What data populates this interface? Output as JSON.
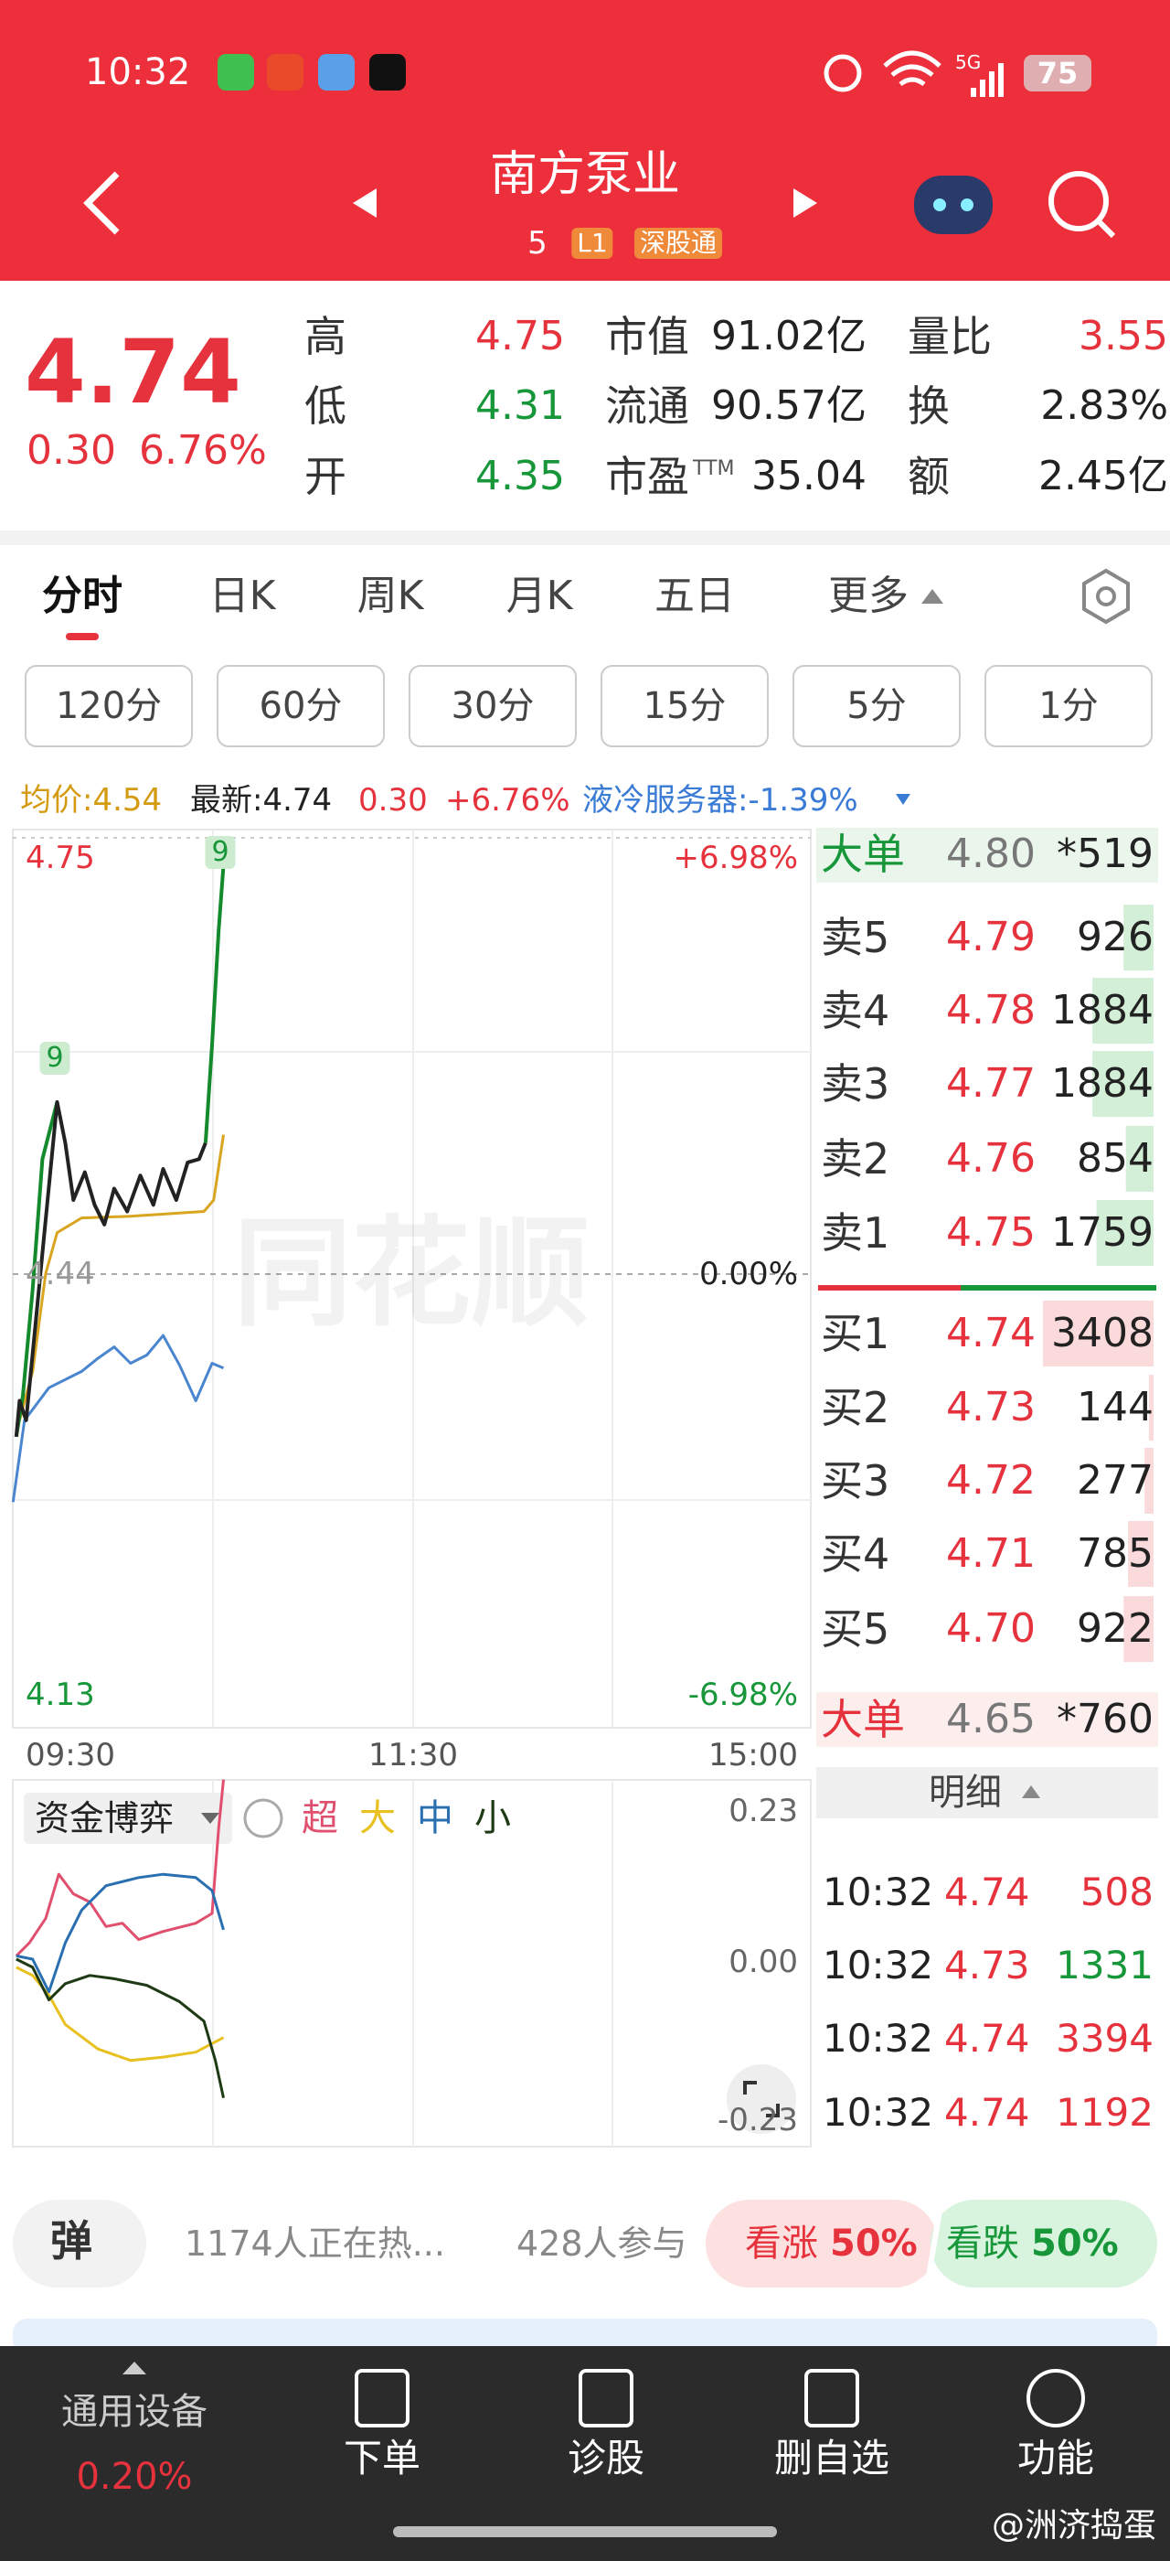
{
  "status_bar": {
    "time": "10:32",
    "network": "5G",
    "battery": "75"
  },
  "header": {
    "title": "南方泵业",
    "code": "5",
    "level": "L1",
    "tag": "深股通"
  },
  "quote": {
    "price": "4.74",
    "change": "0.30",
    "change_pct": "6.76%",
    "stats": [
      {
        "label": "高",
        "value": "4.75"
      },
      {
        "label": "低",
        "value": "4.31"
      },
      {
        "label": "开",
        "value": "4.35"
      },
      {
        "label": "市值",
        "value": "91.02亿"
      },
      {
        "label": "流通",
        "value": "90.57亿"
      },
      {
        "label": "市盈",
        "suffix": "TTM",
        "value": "35.04"
      },
      {
        "label": "量比",
        "value": "3.55"
      },
      {
        "label": "换",
        "value": "2.83%"
      },
      {
        "label": "额",
        "value": "2.45亿"
      }
    ]
  },
  "tabs": [
    "分时",
    "日K",
    "周K",
    "月K",
    "五日",
    "更多"
  ],
  "intervals": [
    "120分",
    "60分",
    "30分",
    "15分",
    "5分",
    "1分"
  ],
  "info": {
    "avg": "均价:4.54",
    "latest": "最新:4.74",
    "change": "0.30",
    "change_pct": "+6.76%",
    "sector": "液冷服务器:-1.39%"
  },
  "chart": {
    "logo": "同花顺",
    "price_labels": {
      "high": "4.75",
      "mid": "4.44",
      "low": "4.13"
    },
    "pct_labels": {
      "high": "+6.98%",
      "mid": "0.00%",
      "low": "-6.98%"
    },
    "time_labels": [
      "09:30",
      "11:30",
      "15:00"
    ],
    "markers": [
      "9",
      "9"
    ]
  },
  "order_book": {
    "big_sell": {
      "label": "大单",
      "price": "4.80",
      "volume": "*519"
    },
    "asks": [
      {
        "label": "卖5",
        "price": "4.79",
        "volume": 926
      },
      {
        "label": "卖4",
        "price": "4.78",
        "volume": 1884
      },
      {
        "label": "卖3",
        "price": "4.77",
        "volume": 1884
      },
      {
        "label": "卖2",
        "price": "4.76",
        "volume": 854
      },
      {
        "label": "卖1",
        "price": "4.75",
        "volume": 1759
      }
    ],
    "bids": [
      {
        "label": "买1",
        "price": "4.74",
        "volume": 3408
      },
      {
        "label": "买2",
        "price": "4.73",
        "volume": 144
      },
      {
        "label": "买3",
        "price": "4.72",
        "volume": 277
      },
      {
        "label": "买4",
        "price": "4.71",
        "volume": 785
      },
      {
        "label": "买5",
        "price": "4.70",
        "volume": 922
      }
    ],
    "big_buy": {
      "label": "大单",
      "price": "4.65",
      "volume": "*760"
    }
  },
  "details": {
    "title": "明细",
    "rows": [
      [
        "10:32",
        "4.74",
        "508"
      ],
      [
        "10:32",
        "4.73",
        "1331"
      ],
      [
        "10:32",
        "4.74",
        "3394"
      ],
      [
        "10:32",
        "4.74",
        "1192"
      ]
    ]
  },
  "fund_flow": {
    "title": "资金博弈",
    "legend": [
      "超",
      "大",
      "中",
      "小"
    ],
    "axis": [
      "0.23",
      "0.00",
      "-0.23"
    ]
  },
  "social": {
    "danmu": "弹",
    "heat": "1174人正在热...",
    "participants": "428人参与",
    "up_label": "看涨",
    "up_pct": "50%",
    "down_label": "看跌",
    "down_pct": "50%"
  },
  "bottom_nav": {
    "sector": "通用设备",
    "sector_change": "0.20%",
    "items": [
      "下单",
      "诊股",
      "删自选",
      "功能"
    ]
  },
  "watermark": "@洲济捣蛋"
}
